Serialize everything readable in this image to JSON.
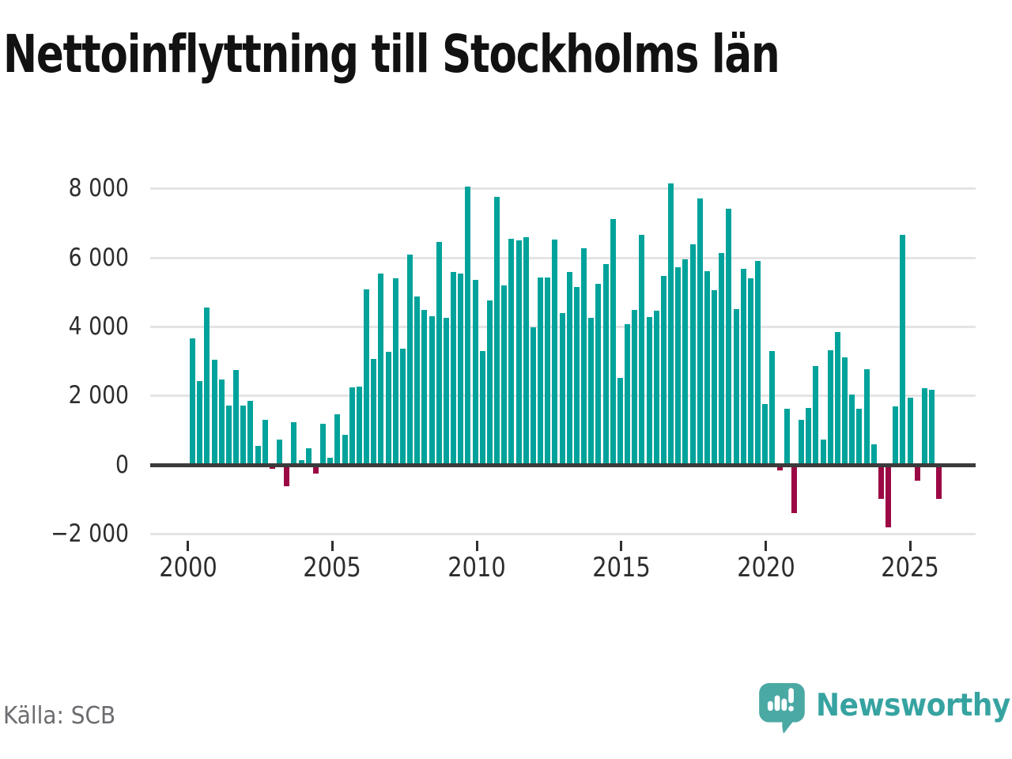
{
  "title": "Nettoinflyttning till Stockholms län",
  "source": "Källa: SCB",
  "brand": {
    "name": "Newsworthy",
    "icon": "speech-bubble-bar-chart-icon"
  },
  "colors": {
    "bar_positive": "#00a39b",
    "bar_negative": "#9b0844",
    "zero_axis": "#3b3b3b",
    "gridline": "#e4e4e4",
    "tick_text": "#2d2d2d",
    "title_text": "#121212",
    "muted_text": "#6c6c71",
    "brand_teal": "#36a3a1",
    "brand_bubble": "#4ba9a4"
  },
  "chart_data": {
    "type": "bar",
    "title": "Nettoinflyttning till Stockholms län",
    "frequency": "quarterly",
    "start_period": "2000 Q1",
    "grid": "on",
    "legend": "none",
    "ylim": [
      -2000,
      8400
    ],
    "y_tick_values": [
      8000,
      6000,
      4000,
      2000,
      0,
      -2000
    ],
    "y_tick_labels": [
      "8 000",
      "6 000",
      "4 000",
      "2 000",
      "0",
      "−2 000"
    ],
    "x_tick_labels": [
      "2000",
      "2005",
      "2010",
      "2015",
      "2020",
      "2025"
    ],
    "x_tick_years": [
      2000,
      2005,
      2010,
      2015,
      2020,
      2025
    ],
    "values": [
      3660,
      2440,
      4560,
      3055,
      2465,
      1715,
      2750,
      1730,
      1845,
      550,
      1300,
      -115,
      725,
      -610,
      1240,
      150,
      480,
      -245,
      1185,
      210,
      1475,
      870,
      2235,
      2265,
      5075,
      3060,
      5540,
      3275,
      5410,
      3365,
      6085,
      4885,
      4495,
      4300,
      6450,
      4265,
      5580,
      5555,
      8070,
      5350,
      3305,
      4770,
      7770,
      5190,
      6550,
      6510,
      6600,
      3985,
      5420,
      5435,
      6525,
      4410,
      5585,
      5160,
      6275,
      4250,
      5245,
      5815,
      7130,
      2510,
      4075,
      4500,
      6655,
      4275,
      4460,
      5480,
      8165,
      5725,
      5955,
      6380,
      7725,
      5620,
      5055,
      6150,
      7420,
      4520,
      5670,
      5405,
      5915,
      1760,
      3295,
      -170,
      1620,
      -1390,
      1300,
      1640,
      2855,
      725,
      3320,
      3855,
      3115,
      2045,
      1620,
      2765,
      590,
      -975,
      -1800,
      1695,
      6660,
      1940,
      -465,
      2230,
      2170,
      -985
    ]
  }
}
